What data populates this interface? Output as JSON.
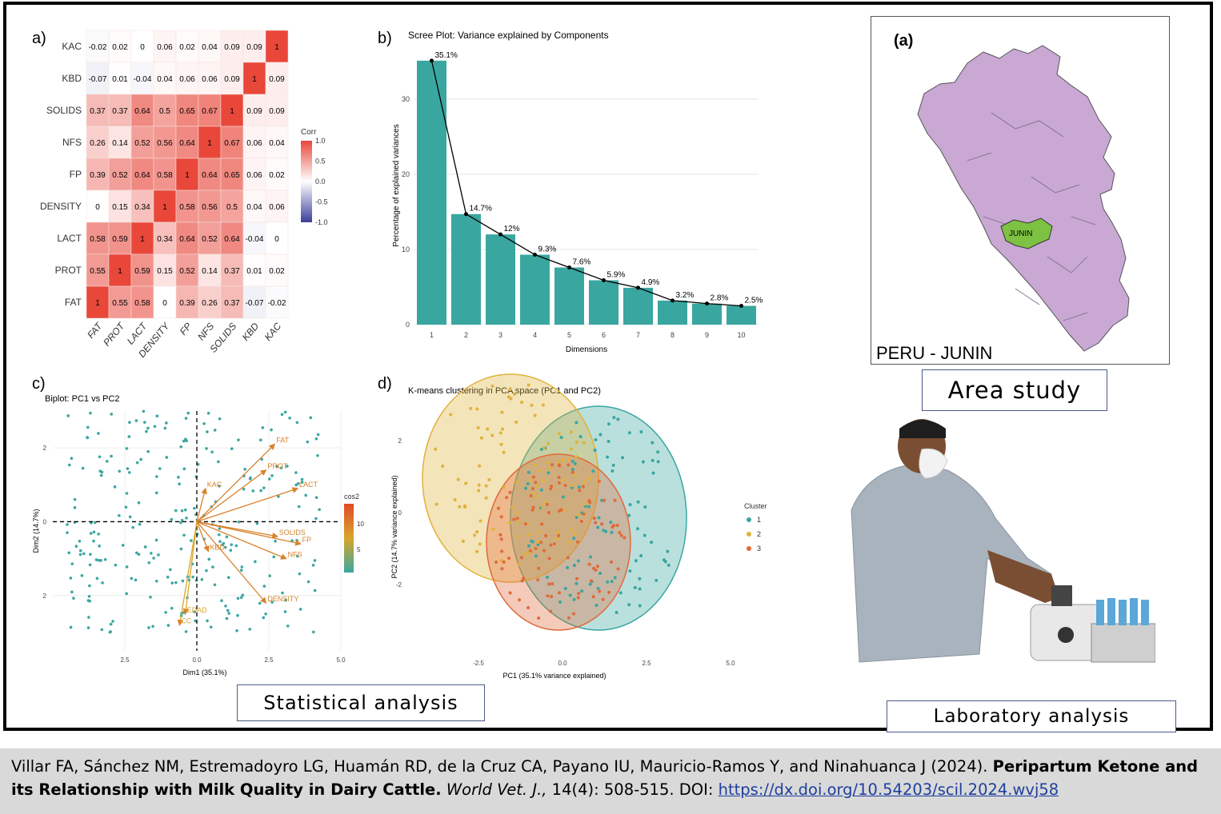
{
  "panels": {
    "a": {
      "letter": "a)"
    },
    "b": {
      "letter": "b)",
      "title": "Scree Plot: Variance explained by Components"
    },
    "c": {
      "letter": "c)",
      "title": "Biplot: PC1 vs PC2"
    },
    "d": {
      "letter": "d)",
      "title": "K-means clustering in PCA space (PC1 and PC2)"
    }
  },
  "chart_data": [
    {
      "type": "heatmap",
      "rows": [
        "KAC",
        "KBD",
        "SOLIDS",
        "NFS",
        "FP",
        "DENSITY",
        "LACT",
        "PROT",
        "FAT"
      ],
      "cols": [
        "FAT",
        "PROT",
        "LACT",
        "DENSITY",
        "FP",
        "NFS",
        "SOLIDS",
        "KBD",
        "KAC"
      ],
      "values": [
        [
          "-0.02",
          "0.02",
          "0",
          "0.06",
          "0.02",
          "0.04",
          "0.09",
          "0.09",
          "1"
        ],
        [
          "-0.07",
          "0.01",
          "-0.04",
          "0.04",
          "0.06",
          "0.06",
          "0.09",
          "1",
          "0.09"
        ],
        [
          "0.37",
          "0.37",
          "0.64",
          "0.5",
          "0.65",
          "0.67",
          "1",
          "0.09",
          "0.09"
        ],
        [
          "0.26",
          "0.14",
          "0.52",
          "0.56",
          "0.64",
          "1",
          "0.67",
          "0.06",
          "0.04"
        ],
        [
          "0.39",
          "0.52",
          "0.64",
          "0.58",
          "1",
          "0.64",
          "0.65",
          "0.06",
          "0.02"
        ],
        [
          "0",
          "0.15",
          "0.34",
          "1",
          "0.58",
          "0.56",
          "0.5",
          "0.04",
          "0.06"
        ],
        [
          "0.58",
          "0.59",
          "1",
          "0.34",
          "0.64",
          "0.52",
          "0.64",
          "-0.04",
          "0"
        ],
        [
          "0.55",
          "1",
          "0.59",
          "0.15",
          "0.52",
          "0.14",
          "0.37",
          "0.01",
          "0.02"
        ],
        [
          "1",
          "0.55",
          "0.58",
          "0",
          "0.39",
          "0.26",
          "0.37",
          "-0.07",
          "-0.02"
        ]
      ],
      "legend_title": "Corr",
      "legend_ticks": [
        "1.0",
        "0.5",
        "0.0",
        "-0.5",
        "-1.0"
      ],
      "colors": {
        "pos": "#e8473a",
        "neg": "#3b3f9a",
        "zero": "#ffffff"
      }
    },
    {
      "type": "bar",
      "title": "Scree Plot: Variance explained by Components",
      "xlabel": "Dimensions",
      "ylabel": "Percentage of explained variances",
      "categories": [
        "1",
        "2",
        "3",
        "4",
        "5",
        "6",
        "7",
        "8",
        "9",
        "10"
      ],
      "values": [
        35.1,
        14.7,
        12,
        9.3,
        7.6,
        5.9,
        4.9,
        3.2,
        2.8,
        2.5
      ],
      "labels": [
        "35.1%",
        "14.7%",
        "12%",
        "9.3%",
        "7.6%",
        "5.9%",
        "4.9%",
        "3.2%",
        "2.8%",
        "2.5%"
      ],
      "yticks": [
        "0",
        "10",
        "20",
        "30"
      ],
      "ylim": [
        0,
        37
      ],
      "bar_color": "#3aa6a0"
    },
    {
      "type": "scatter",
      "title": "Biplot: PC1 vs PC2",
      "xlabel": "Dim1 (35.1%)",
      "ylabel": "Dim2 (14.7%)",
      "xticks": [
        "2.5",
        "0.0",
        "2.5",
        "5.0"
      ],
      "yticks": [
        "2",
        "0",
        "2"
      ],
      "legend_title": "cos2",
      "legend_ticks": [
        "10",
        "5"
      ],
      "xlim": [
        -5,
        5
      ],
      "ylim": [
        -3.5,
        3
      ],
      "arrows": [
        {
          "name": "FAT",
          "x": 2.7,
          "y": 2.1
        },
        {
          "name": "PROT",
          "x": 2.4,
          "y": 1.4
        },
        {
          "name": "LACT",
          "x": 3.5,
          "y": 0.9
        },
        {
          "name": "SOLIDS",
          "x": 2.8,
          "y": -0.4
        },
        {
          "name": "FP",
          "x": 3.6,
          "y": -0.6
        },
        {
          "name": "NFS",
          "x": 3.1,
          "y": -1.0
        },
        {
          "name": "DENSITY",
          "x": 2.4,
          "y": -2.2
        },
        {
          "name": "KAC",
          "x": 0.3,
          "y": 0.9
        },
        {
          "name": "KBD",
          "x": 0.4,
          "y": -0.8
        },
        {
          "name": "EDAD",
          "x": -0.4,
          "y": -2.5
        },
        {
          "name": "CC",
          "x": -0.6,
          "y": -2.8
        }
      ]
    },
    {
      "type": "scatter",
      "title": "K-means clustering in PCA space (PC1 and PC2)",
      "xlabel": "PC1 (35.1% variance explained)",
      "ylabel": "PC2 (14.7% variance explained)",
      "xticks": [
        "-2.5",
        "0.0",
        "2.5",
        "5.0"
      ],
      "yticks": [
        "2",
        "0",
        "-2"
      ],
      "legend_title": "Cluster",
      "legend_entries": [
        {
          "label": "1",
          "color": "#3aa6a0"
        },
        {
          "label": "2",
          "color": "#e0b23a"
        },
        {
          "label": "3",
          "color": "#e06a3a"
        }
      ]
    }
  ],
  "map": {
    "panel_label": "(a)",
    "region_label": "JUNIN",
    "caption": "PERU - JUNIN",
    "country_color": "#c9a8d4",
    "region_color": "#7dc242"
  },
  "captions": {
    "area": "Area study",
    "statistical": "Statistical analysis",
    "laboratory": "Laboratory analysis"
  },
  "footer": {
    "authors": "Villar FA, Sánchez NM, Estremadoyro LG, Huamán RD, de la Cruz CA, Payano IU, Mauricio-Ramos Y, and Ninahuanca J (2024).",
    "title": "Peripartum Ketone and its Relationship with Milk Quality in Dairy Cattle.",
    "journal": "World Vet. J.,",
    "volume": "14(4): 508-515. DOI:",
    "doi": "https://dx.doi.org/10.54203/scil.2024.wvj58"
  }
}
